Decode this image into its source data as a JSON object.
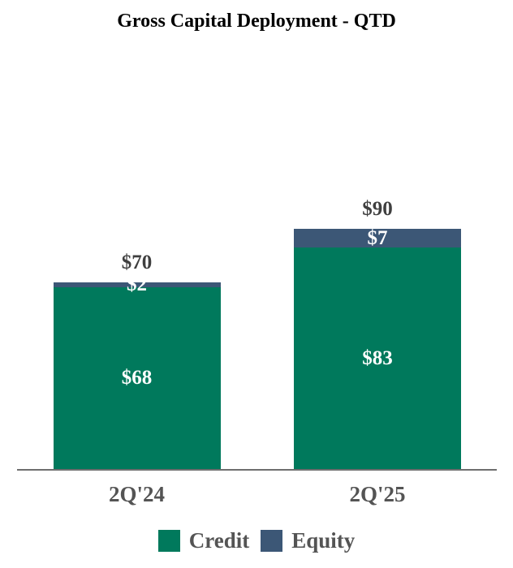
{
  "chart_data": {
    "type": "bar",
    "stacked": true,
    "title": "Gross Capital Deployment - QTD",
    "categories": [
      "2Q'24",
      "2Q'25"
    ],
    "series": [
      {
        "name": "Credit",
        "color": "#00795C",
        "values": [
          68,
          83
        ],
        "labels": [
          "$68",
          "$83"
        ]
      },
      {
        "name": "Equity",
        "color": "#3C5776",
        "values": [
          2,
          7
        ],
        "labels": [
          "$2",
          "$7"
        ]
      }
    ],
    "totals": [
      70,
      90
    ],
    "total_labels": [
      "$70",
      "$90"
    ],
    "value_prefix": "$",
    "xlabel": "",
    "ylabel": "",
    "ylim": [
      0,
      157
    ],
    "grid": false,
    "y_axis_visible": false,
    "legend_position": "bottom",
    "legend": [
      {
        "label": "Credit",
        "color": "#00795C"
      },
      {
        "label": "Equity",
        "color": "#3C5776"
      }
    ],
    "colors": {
      "title": "#000000",
      "total_label": "#3F3F3F",
      "segment_label": "#FFFFFF",
      "axis_label": "#545454",
      "axis_line": "#6E6E6E",
      "background": "#FFFFFF"
    }
  }
}
